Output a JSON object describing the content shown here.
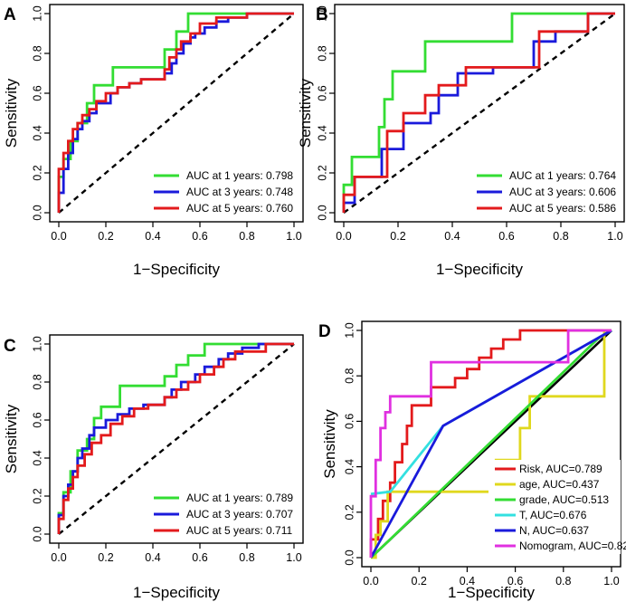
{
  "figure": {
    "x_label": "1−Specificity",
    "y_label": "Sensitivity",
    "ticks": [
      "0.0",
      "0.2",
      "0.4",
      "0.6",
      "0.8",
      "1.0"
    ]
  },
  "chart_data": [
    {
      "panel": "A",
      "type": "line",
      "xlabel": "1−Specificity",
      "ylabel": "Sensitivity",
      "xlim": [
        0,
        1
      ],
      "ylim": [
        0,
        1
      ],
      "legend_position": "bottom-right",
      "series": [
        {
          "name": "AUC at 1 years: 0.798",
          "color": "#33dd33",
          "x": [
            0,
            0,
            0.02,
            0.02,
            0.05,
            0.05,
            0.08,
            0.08,
            0.12,
            0.12,
            0.15,
            0.15,
            0.23,
            0.23,
            0.45,
            0.45,
            0.5,
            0.5,
            0.55,
            0.55,
            1
          ],
          "y": [
            0,
            0.18,
            0.18,
            0.27,
            0.27,
            0.36,
            0.36,
            0.45,
            0.45,
            0.55,
            0.55,
            0.64,
            0.64,
            0.73,
            0.73,
            0.82,
            0.82,
            0.91,
            0.91,
            1,
            1
          ]
        },
        {
          "name": "AUC at 3 years: 0.748",
          "color": "#1a1adb",
          "x": [
            0,
            0,
            0.02,
            0.02,
            0.04,
            0.04,
            0.06,
            0.06,
            0.08,
            0.08,
            0.1,
            0.1,
            0.13,
            0.13,
            0.16,
            0.16,
            0.22,
            0.22,
            0.25,
            0.25,
            0.3,
            0.3,
            0.35,
            0.35,
            0.45,
            0.45,
            0.48,
            0.48,
            0.5,
            0.5,
            0.53,
            0.53,
            0.56,
            0.56,
            0.58,
            0.58,
            0.62,
            0.62,
            0.67,
            0.67,
            0.72,
            0.72,
            0.8,
            0.8,
            1
          ],
          "y": [
            0,
            0.1,
            0.1,
            0.22,
            0.22,
            0.3,
            0.3,
            0.37,
            0.37,
            0.42,
            0.42,
            0.46,
            0.46,
            0.5,
            0.5,
            0.55,
            0.55,
            0.6,
            0.6,
            0.63,
            0.63,
            0.65,
            0.65,
            0.67,
            0.67,
            0.7,
            0.7,
            0.75,
            0.75,
            0.8,
            0.8,
            0.85,
            0.85,
            0.88,
            0.88,
            0.9,
            0.9,
            0.93,
            0.93,
            0.96,
            0.96,
            0.98,
            0.98,
            1,
            1
          ]
        },
        {
          "name": "AUC at 5 years: 0.760",
          "color": "#e31a1c",
          "x": [
            0,
            0,
            0.02,
            0.02,
            0.04,
            0.04,
            0.06,
            0.06,
            0.08,
            0.08,
            0.1,
            0.1,
            0.13,
            0.13,
            0.16,
            0.16,
            0.2,
            0.2,
            0.25,
            0.25,
            0.3,
            0.3,
            0.35,
            0.35,
            0.45,
            0.45,
            0.47,
            0.47,
            0.5,
            0.5,
            0.52,
            0.52,
            0.56,
            0.56,
            0.6,
            0.6,
            0.67,
            0.67,
            0.8,
            0.8,
            1
          ],
          "y": [
            0,
            0.22,
            0.22,
            0.3,
            0.3,
            0.36,
            0.36,
            0.42,
            0.42,
            0.45,
            0.45,
            0.49,
            0.49,
            0.52,
            0.52,
            0.56,
            0.56,
            0.6,
            0.6,
            0.63,
            0.63,
            0.65,
            0.65,
            0.67,
            0.67,
            0.72,
            0.72,
            0.78,
            0.78,
            0.82,
            0.82,
            0.86,
            0.86,
            0.9,
            0.9,
            0.95,
            0.95,
            0.98,
            0.98,
            1,
            1
          ]
        }
      ]
    },
    {
      "panel": "B",
      "type": "line",
      "xlabel": "1−Specificity",
      "ylabel": "Sensitivity",
      "xlim": [
        0,
        1
      ],
      "ylim": [
        0,
        1
      ],
      "legend_position": "bottom-right",
      "series": [
        {
          "name": "AUC at 1 years: 0.764",
          "color": "#33dd33",
          "x": [
            0,
            0,
            0.03,
            0.03,
            0.13,
            0.13,
            0.15,
            0.15,
            0.18,
            0.18,
            0.3,
            0.3,
            0.62,
            0.62,
            1
          ],
          "y": [
            0,
            0.14,
            0.14,
            0.28,
            0.28,
            0.43,
            0.43,
            0.57,
            0.57,
            0.71,
            0.71,
            0.86,
            0.86,
            1,
            1
          ]
        },
        {
          "name": "AUC at 3 years: 0.606",
          "color": "#1a1adb",
          "x": [
            0,
            0,
            0.04,
            0.04,
            0.14,
            0.14,
            0.22,
            0.22,
            0.32,
            0.32,
            0.35,
            0.35,
            0.42,
            0.42,
            0.55,
            0.55,
            0.7,
            0.7,
            0.78,
            0.78,
            0.9,
            0.9,
            1
          ],
          "y": [
            0,
            0.05,
            0.05,
            0.18,
            0.18,
            0.32,
            0.32,
            0.45,
            0.45,
            0.5,
            0.5,
            0.59,
            0.59,
            0.7,
            0.7,
            0.73,
            0.73,
            0.86,
            0.86,
            0.91,
            0.91,
            1,
            1
          ]
        },
        {
          "name": "AUC at 5 years: 0.586",
          "color": "#e31a1c",
          "x": [
            0,
            0,
            0.04,
            0.04,
            0.16,
            0.16,
            0.22,
            0.22,
            0.3,
            0.3,
            0.35,
            0.35,
            0.45,
            0.45,
            0.72,
            0.72,
            0.9,
            0.9,
            1
          ],
          "y": [
            0,
            0.09,
            0.09,
            0.18,
            0.18,
            0.41,
            0.41,
            0.5,
            0.5,
            0.59,
            0.59,
            0.64,
            0.64,
            0.73,
            0.73,
            0.91,
            0.91,
            1,
            1
          ]
        }
      ]
    },
    {
      "panel": "C",
      "type": "line",
      "xlabel": "1−Specificity",
      "ylabel": "Sensitivity",
      "xlim": [
        0,
        1
      ],
      "ylim": [
        0,
        1
      ],
      "legend_position": "bottom-right",
      "series": [
        {
          "name": "AUC at 1 years: 0.789",
          "color": "#33dd33",
          "x": [
            0,
            0,
            0.02,
            0.02,
            0.05,
            0.05,
            0.08,
            0.08,
            0.12,
            0.12,
            0.15,
            0.15,
            0.18,
            0.18,
            0.26,
            0.26,
            0.45,
            0.45,
            0.5,
            0.5,
            0.55,
            0.55,
            0.62,
            0.62,
            0.8,
            0.8,
            1
          ],
          "y": [
            0,
            0.11,
            0.11,
            0.22,
            0.22,
            0.33,
            0.33,
            0.44,
            0.44,
            0.5,
            0.5,
            0.61,
            0.61,
            0.67,
            0.67,
            0.78,
            0.78,
            0.83,
            0.83,
            0.89,
            0.89,
            0.94,
            0.94,
            1,
            1,
            1,
            1
          ]
        },
        {
          "name": "AUC at 3 years: 0.707",
          "color": "#1a1adb",
          "x": [
            0,
            0,
            0.02,
            0.02,
            0.04,
            0.04,
            0.06,
            0.06,
            0.08,
            0.08,
            0.1,
            0.1,
            0.13,
            0.13,
            0.15,
            0.15,
            0.2,
            0.2,
            0.25,
            0.25,
            0.3,
            0.3,
            0.36,
            0.36,
            0.45,
            0.45,
            0.48,
            0.48,
            0.52,
            0.52,
            0.58,
            0.58,
            0.62,
            0.62,
            0.68,
            0.68,
            0.72,
            0.72,
            0.78,
            0.78,
            0.85,
            0.85,
            1
          ],
          "y": [
            0,
            0.1,
            0.1,
            0.2,
            0.2,
            0.26,
            0.26,
            0.33,
            0.33,
            0.4,
            0.4,
            0.45,
            0.45,
            0.52,
            0.52,
            0.56,
            0.56,
            0.6,
            0.6,
            0.63,
            0.63,
            0.66,
            0.66,
            0.68,
            0.68,
            0.72,
            0.72,
            0.76,
            0.76,
            0.8,
            0.8,
            0.84,
            0.84,
            0.88,
            0.88,
            0.92,
            0.92,
            0.95,
            0.95,
            0.98,
            0.98,
            1,
            1
          ]
        },
        {
          "name": "AUC at 5 years: 0.711",
          "color": "#e31a1c",
          "x": [
            0,
            0,
            0.02,
            0.02,
            0.04,
            0.04,
            0.06,
            0.06,
            0.08,
            0.08,
            0.11,
            0.11,
            0.14,
            0.14,
            0.18,
            0.18,
            0.22,
            0.22,
            0.27,
            0.27,
            0.32,
            0.32,
            0.38,
            0.38,
            0.45,
            0.45,
            0.5,
            0.5,
            0.55,
            0.55,
            0.6,
            0.6,
            0.66,
            0.66,
            0.7,
            0.7,
            0.75,
            0.75,
            0.88,
            0.88,
            1
          ],
          "y": [
            0,
            0.08,
            0.08,
            0.18,
            0.18,
            0.24,
            0.24,
            0.3,
            0.3,
            0.36,
            0.36,
            0.42,
            0.42,
            0.48,
            0.48,
            0.52,
            0.52,
            0.58,
            0.58,
            0.62,
            0.62,
            0.66,
            0.66,
            0.68,
            0.68,
            0.72,
            0.72,
            0.76,
            0.76,
            0.8,
            0.8,
            0.84,
            0.84,
            0.88,
            0.88,
            0.92,
            0.92,
            0.96,
            0.96,
            1,
            1
          ]
        }
      ]
    },
    {
      "panel": "D",
      "type": "line",
      "xlabel": "1−Specificity",
      "ylabel": "Sensitivity",
      "xlim": [
        0,
        1
      ],
      "ylim": [
        0,
        1
      ],
      "legend_position": "bottom-right",
      "reference_line": "diagonal",
      "series": [
        {
          "name": "Risk, AUC=0.789",
          "color": "#e31a1c",
          "x": [
            0,
            0,
            0.03,
            0.03,
            0.05,
            0.05,
            0.08,
            0.08,
            0.1,
            0.1,
            0.13,
            0.13,
            0.15,
            0.15,
            0.17,
            0.17,
            0.2,
            0.2,
            0.25,
            0.25,
            0.35,
            0.35,
            0.4,
            0.4,
            0.45,
            0.45,
            0.5,
            0.5,
            0.55,
            0.55,
            0.62,
            0.62,
            0.82,
            0.82,
            1
          ],
          "y": [
            0,
            0.08,
            0.08,
            0.17,
            0.17,
            0.25,
            0.25,
            0.33,
            0.33,
            0.42,
            0.42,
            0.5,
            0.5,
            0.58,
            0.58,
            0.67,
            0.67,
            0.67,
            0.67,
            0.75,
            0.75,
            0.79,
            0.79,
            0.83,
            0.83,
            0.88,
            0.88,
            0.92,
            0.92,
            0.96,
            0.96,
            1,
            1,
            1,
            1
          ]
        },
        {
          "name": "age, AUC=0.437",
          "color": "#e0d81e",
          "x": [
            0,
            0.02,
            0.02,
            0.04,
            0.04,
            0.07,
            0.07,
            0.52,
            0.52,
            0.62,
            0.62,
            0.66,
            0.66,
            0.97,
            0.97,
            1
          ],
          "y": [
            0,
            0,
            0.1,
            0.1,
            0.16,
            0.16,
            0.29,
            0.29,
            0.43,
            0.43,
            0.57,
            0.57,
            0.71,
            0.71,
            1,
            1
          ]
        },
        {
          "name": "grade, AUC=0.513",
          "color": "#33dd33",
          "x": [
            0,
            0.05,
            0.95,
            1
          ],
          "y": [
            0,
            0.05,
            0.97,
            1
          ]
        },
        {
          "name": "T, AUC=0.676",
          "color": "#33e0e0",
          "x": [
            0,
            0.08,
            0.3,
            1
          ],
          "y": [
            0.28,
            0.29,
            0.58,
            1
          ]
        },
        {
          "name": "N, AUC=0.637",
          "color": "#1a1adb",
          "x": [
            0,
            0.3,
            1
          ],
          "y": [
            0,
            0.58,
            1
          ]
        },
        {
          "name": "Nomogram, AUC=0.82",
          "color": "#e030e0",
          "x": [
            0,
            0,
            0.02,
            0.02,
            0.04,
            0.04,
            0.06,
            0.06,
            0.08,
            0.08,
            0.1,
            0.1,
            0.25,
            0.25,
            0.82,
            0.82,
            1
          ],
          "y": [
            0,
            0.27,
            0.27,
            0.43,
            0.43,
            0.57,
            0.57,
            0.64,
            0.64,
            0.71,
            0.71,
            0.71,
            0.71,
            0.86,
            0.86,
            1,
            1
          ]
        }
      ]
    }
  ]
}
